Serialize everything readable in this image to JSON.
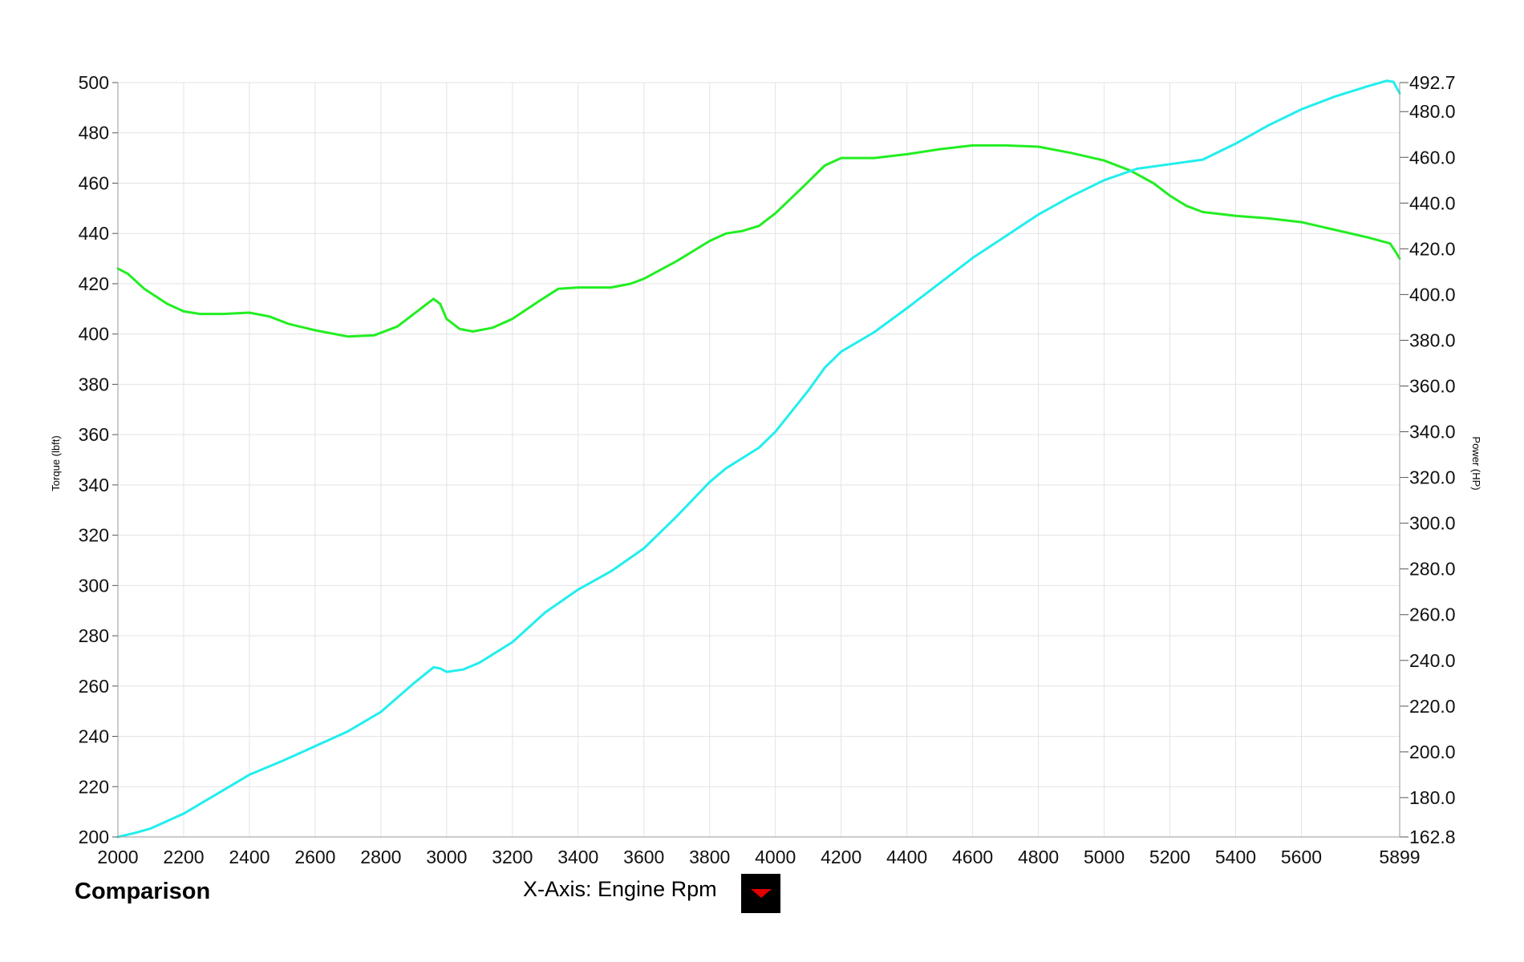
{
  "footer": {
    "title": "Comparison",
    "xaxis_label": "X-Axis: Engine Rpm"
  },
  "colors": {
    "torque_line": "#22ee22",
    "power_line": "#22eeee",
    "grid": "#e3e3e3",
    "dropdown_arrow": "#e00000"
  },
  "chart_data": {
    "type": "line",
    "xlabel": "",
    "ylabel": "Torque (lbft)",
    "y2label": "Power (HP)",
    "xlim": [
      2000,
      5899
    ],
    "ylim": [
      200,
      500
    ],
    "y2lim": [
      162.8,
      492.7
    ],
    "grid": true,
    "x_ticks": [
      2000,
      2200,
      2400,
      2600,
      2800,
      3000,
      3200,
      3400,
      3600,
      3800,
      4000,
      4200,
      4400,
      4600,
      4800,
      5000,
      5200,
      5400,
      5600,
      5899
    ],
    "y_ticks": [
      200,
      220,
      240,
      260,
      280,
      300,
      320,
      340,
      360,
      380,
      400,
      420,
      440,
      460,
      480,
      500
    ],
    "y2_ticks": [
      "162.8",
      "180.0",
      "200.0",
      "220.0",
      "240.0",
      "260.0",
      "280.0",
      "300.0",
      "320.0",
      "340.0",
      "360.0",
      "380.0",
      "400.0",
      "420.0",
      "440.0",
      "460.0",
      "480.0",
      "492.7"
    ],
    "series": [
      {
        "axis": "left",
        "color": "#22ee22",
        "points": [
          [
            2000,
            426
          ],
          [
            2030,
            424
          ],
          [
            2080,
            418
          ],
          [
            2150,
            412
          ],
          [
            2200,
            409
          ],
          [
            2250,
            408
          ],
          [
            2320,
            408
          ],
          [
            2400,
            408.5
          ],
          [
            2460,
            407
          ],
          [
            2520,
            404
          ],
          [
            2600,
            401.5
          ],
          [
            2700,
            399
          ],
          [
            2780,
            399.5
          ],
          [
            2850,
            403
          ],
          [
            2920,
            410
          ],
          [
            2960,
            414
          ],
          [
            2980,
            412
          ],
          [
            3000,
            406
          ],
          [
            3040,
            402
          ],
          [
            3080,
            401
          ],
          [
            3140,
            402.5
          ],
          [
            3200,
            406
          ],
          [
            3280,
            413
          ],
          [
            3340,
            418
          ],
          [
            3400,
            418.5
          ],
          [
            3500,
            418.5
          ],
          [
            3560,
            420
          ],
          [
            3600,
            422
          ],
          [
            3700,
            429
          ],
          [
            3800,
            437
          ],
          [
            3850,
            440
          ],
          [
            3900,
            441
          ],
          [
            3950,
            443
          ],
          [
            4000,
            448
          ],
          [
            4080,
            458
          ],
          [
            4150,
            467
          ],
          [
            4200,
            470
          ],
          [
            4300,
            470
          ],
          [
            4400,
            471.5
          ],
          [
            4500,
            473.5
          ],
          [
            4600,
            475
          ],
          [
            4700,
            475
          ],
          [
            4800,
            474.5
          ],
          [
            4900,
            472
          ],
          [
            5000,
            469
          ],
          [
            5080,
            465
          ],
          [
            5150,
            460
          ],
          [
            5200,
            455
          ],
          [
            5250,
            451
          ],
          [
            5300,
            448.5
          ],
          [
            5400,
            447
          ],
          [
            5500,
            446
          ],
          [
            5600,
            444.5
          ],
          [
            5700,
            441.5
          ],
          [
            5800,
            438.5
          ],
          [
            5870,
            436
          ],
          [
            5890,
            432
          ],
          [
            5899,
            430
          ]
        ]
      },
      {
        "axis": "right",
        "color": "#22eeee",
        "points": [
          [
            2000,
            162.8
          ],
          [
            2050,
            164.5
          ],
          [
            2100,
            166.5
          ],
          [
            2200,
            173
          ],
          [
            2300,
            181.5
          ],
          [
            2400,
            190
          ],
          [
            2500,
            196
          ],
          [
            2600,
            202.5
          ],
          [
            2700,
            209
          ],
          [
            2800,
            217.5
          ],
          [
            2900,
            230
          ],
          [
            2960,
            237
          ],
          [
            2980,
            236.5
          ],
          [
            3000,
            235
          ],
          [
            3050,
            236
          ],
          [
            3100,
            239
          ],
          [
            3200,
            248
          ],
          [
            3300,
            261
          ],
          [
            3400,
            271
          ],
          [
            3500,
            279
          ],
          [
            3600,
            289
          ],
          [
            3700,
            303
          ],
          [
            3800,
            318
          ],
          [
            3850,
            324
          ],
          [
            3950,
            333
          ],
          [
            4000,
            340
          ],
          [
            4100,
            358
          ],
          [
            4150,
            368
          ],
          [
            4200,
            375
          ],
          [
            4300,
            383.5
          ],
          [
            4400,
            394
          ],
          [
            4500,
            405
          ],
          [
            4600,
            416
          ],
          [
            4700,
            425.5
          ],
          [
            4800,
            435
          ],
          [
            4900,
            443
          ],
          [
            5000,
            450
          ],
          [
            5100,
            455
          ],
          [
            5200,
            457
          ],
          [
            5300,
            459
          ],
          [
            5400,
            466
          ],
          [
            5500,
            474
          ],
          [
            5600,
            481
          ],
          [
            5700,
            486.5
          ],
          [
            5800,
            491
          ],
          [
            5860,
            493.5
          ],
          [
            5880,
            493
          ],
          [
            5899,
            488
          ]
        ]
      }
    ]
  }
}
